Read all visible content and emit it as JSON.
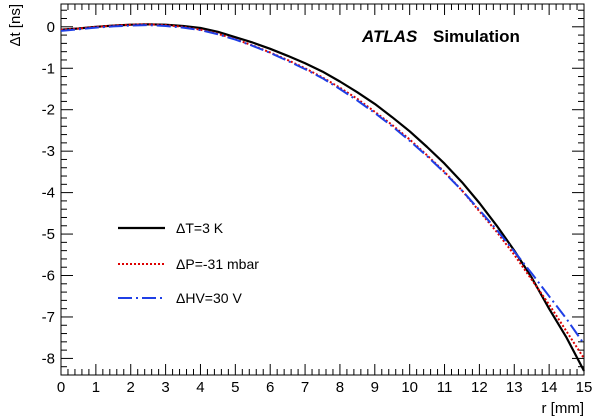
{
  "chart_data": {
    "type": "line",
    "title": "",
    "xlabel": "r [mm]",
    "ylabel": "Δt [ns]",
    "xlim": [
      0,
      15
    ],
    "ylim": [
      -8.4,
      0.55
    ],
    "x_ticks": [
      0,
      1,
      2,
      3,
      4,
      5,
      6,
      7,
      8,
      9,
      10,
      11,
      12,
      13,
      14,
      15
    ],
    "y_ticks": [
      0,
      -1,
      -2,
      -3,
      -4,
      -5,
      -6,
      -7,
      -8
    ],
    "grid": false,
    "legend_position": "lower-left",
    "annotation": {
      "bold": "ATLAS",
      "text": "Simulation"
    },
    "series": [
      {
        "name": "ΔT=3 K",
        "color": "#000000",
        "style": "solid",
        "x": [
          0,
          0.5,
          1,
          1.5,
          2,
          2.5,
          3,
          3.5,
          4,
          4.5,
          5,
          5.5,
          6,
          6.5,
          7,
          7.5,
          8,
          8.5,
          9,
          9.5,
          10,
          10.5,
          11,
          11.5,
          12,
          12.5,
          13,
          13.5,
          14,
          14.5,
          15
        ],
        "y": [
          -0.07,
          -0.04,
          0.0,
          0.03,
          0.05,
          0.06,
          0.05,
          0.02,
          -0.03,
          -0.12,
          -0.25,
          -0.38,
          -0.53,
          -0.7,
          -0.88,
          -1.08,
          -1.32,
          -1.58,
          -1.86,
          -2.18,
          -2.52,
          -2.9,
          -3.3,
          -3.75,
          -4.25,
          -4.8,
          -5.4,
          -6.05,
          -6.8,
          -7.5,
          -8.3
        ]
      },
      {
        "name": "ΔP=-31 mbar",
        "color": "#dd0000",
        "style": "dotted",
        "x": [
          0,
          0.5,
          1,
          1.5,
          2,
          2.5,
          3,
          3.5,
          4,
          4.5,
          5,
          5.5,
          6,
          6.5,
          7,
          7.5,
          8,
          8.5,
          9,
          9.5,
          10,
          10.5,
          11,
          11.5,
          12,
          12.5,
          13,
          13.5,
          14,
          14.5,
          15
        ],
        "y": [
          -0.07,
          -0.04,
          0.0,
          0.03,
          0.05,
          0.06,
          0.04,
          0.0,
          -0.07,
          -0.17,
          -0.3,
          -0.45,
          -0.62,
          -0.8,
          -1.0,
          -1.22,
          -1.47,
          -1.74,
          -2.05,
          -2.37,
          -2.72,
          -3.1,
          -3.5,
          -3.95,
          -4.45,
          -4.95,
          -5.5,
          -6.1,
          -6.7,
          -7.35,
          -8.0
        ]
      },
      {
        "name": "ΔHV=30 V",
        "color": "#1f3fe6",
        "style": "dashdot",
        "x": [
          0,
          0.5,
          1,
          1.5,
          2,
          2.5,
          3,
          3.5,
          4,
          4.5,
          5,
          5.5,
          6,
          6.5,
          7,
          7.5,
          8,
          8.5,
          9,
          9.5,
          10,
          10.5,
          11,
          11.5,
          12,
          12.5,
          13,
          13.5,
          14,
          14.5,
          15
        ],
        "y": [
          -0.1,
          -0.06,
          -0.02,
          0.01,
          0.03,
          0.04,
          0.02,
          -0.02,
          -0.08,
          -0.18,
          -0.31,
          -0.46,
          -0.63,
          -0.82,
          -1.02,
          -1.24,
          -1.5,
          -1.78,
          -2.08,
          -2.4,
          -2.75,
          -3.12,
          -3.52,
          -3.95,
          -4.42,
          -4.9,
          -5.42,
          -5.95,
          -6.5,
          -7.05,
          -7.65
        ]
      }
    ]
  }
}
